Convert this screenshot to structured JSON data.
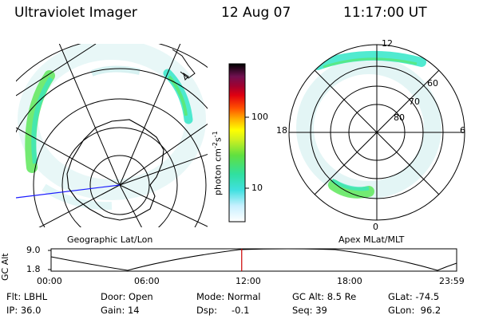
{
  "header": {
    "instrument": "Ultraviolet Imager",
    "date": "12 Aug 07",
    "time": "11:17:00 UT"
  },
  "colorbar": {
    "unit_label": "photon cm",
    "unit_exp1": "-2",
    "unit_mid": "s",
    "unit_exp2": "-1",
    "ticks": [
      "100",
      "10"
    ]
  },
  "geo_panel": {
    "label": "Geographic Lat/Lon"
  },
  "apex_panel": {
    "label": "Apex MLat/MLT",
    "mlt_labels": [
      "12",
      "18",
      "6",
      "0"
    ],
    "lat_labels": [
      "60",
      "70",
      "80"
    ]
  },
  "altitude_plot": {
    "ylabel": "GC Alt",
    "y_ticks": [
      "9.0",
      "1.8"
    ],
    "x_ticks": [
      "00:00",
      "06:00",
      "12:00",
      "18:00",
      "23:59"
    ],
    "current_time_fraction": 0.47
  },
  "footer": {
    "flt": "Flt: LBHL",
    "ip": "IP: 36.0",
    "door": "Door: Open",
    "gain": "Gain: 14",
    "mode": "Mode: Normal",
    "dsp": "Dsp:",
    "dsp_value": "-0.1",
    "gc_alt": "GC Alt: 8.5 Re",
    "seq": "Seq: 39",
    "glat": "GLat: -74.5",
    "glon": "GLon:  96.2"
  },
  "colors": {
    "aurora_cyan": "#33e6c8",
    "aurora_green": "#5ee85a",
    "track_marker": "#cc0000",
    "longitude_line": "#1a1aff"
  }
}
